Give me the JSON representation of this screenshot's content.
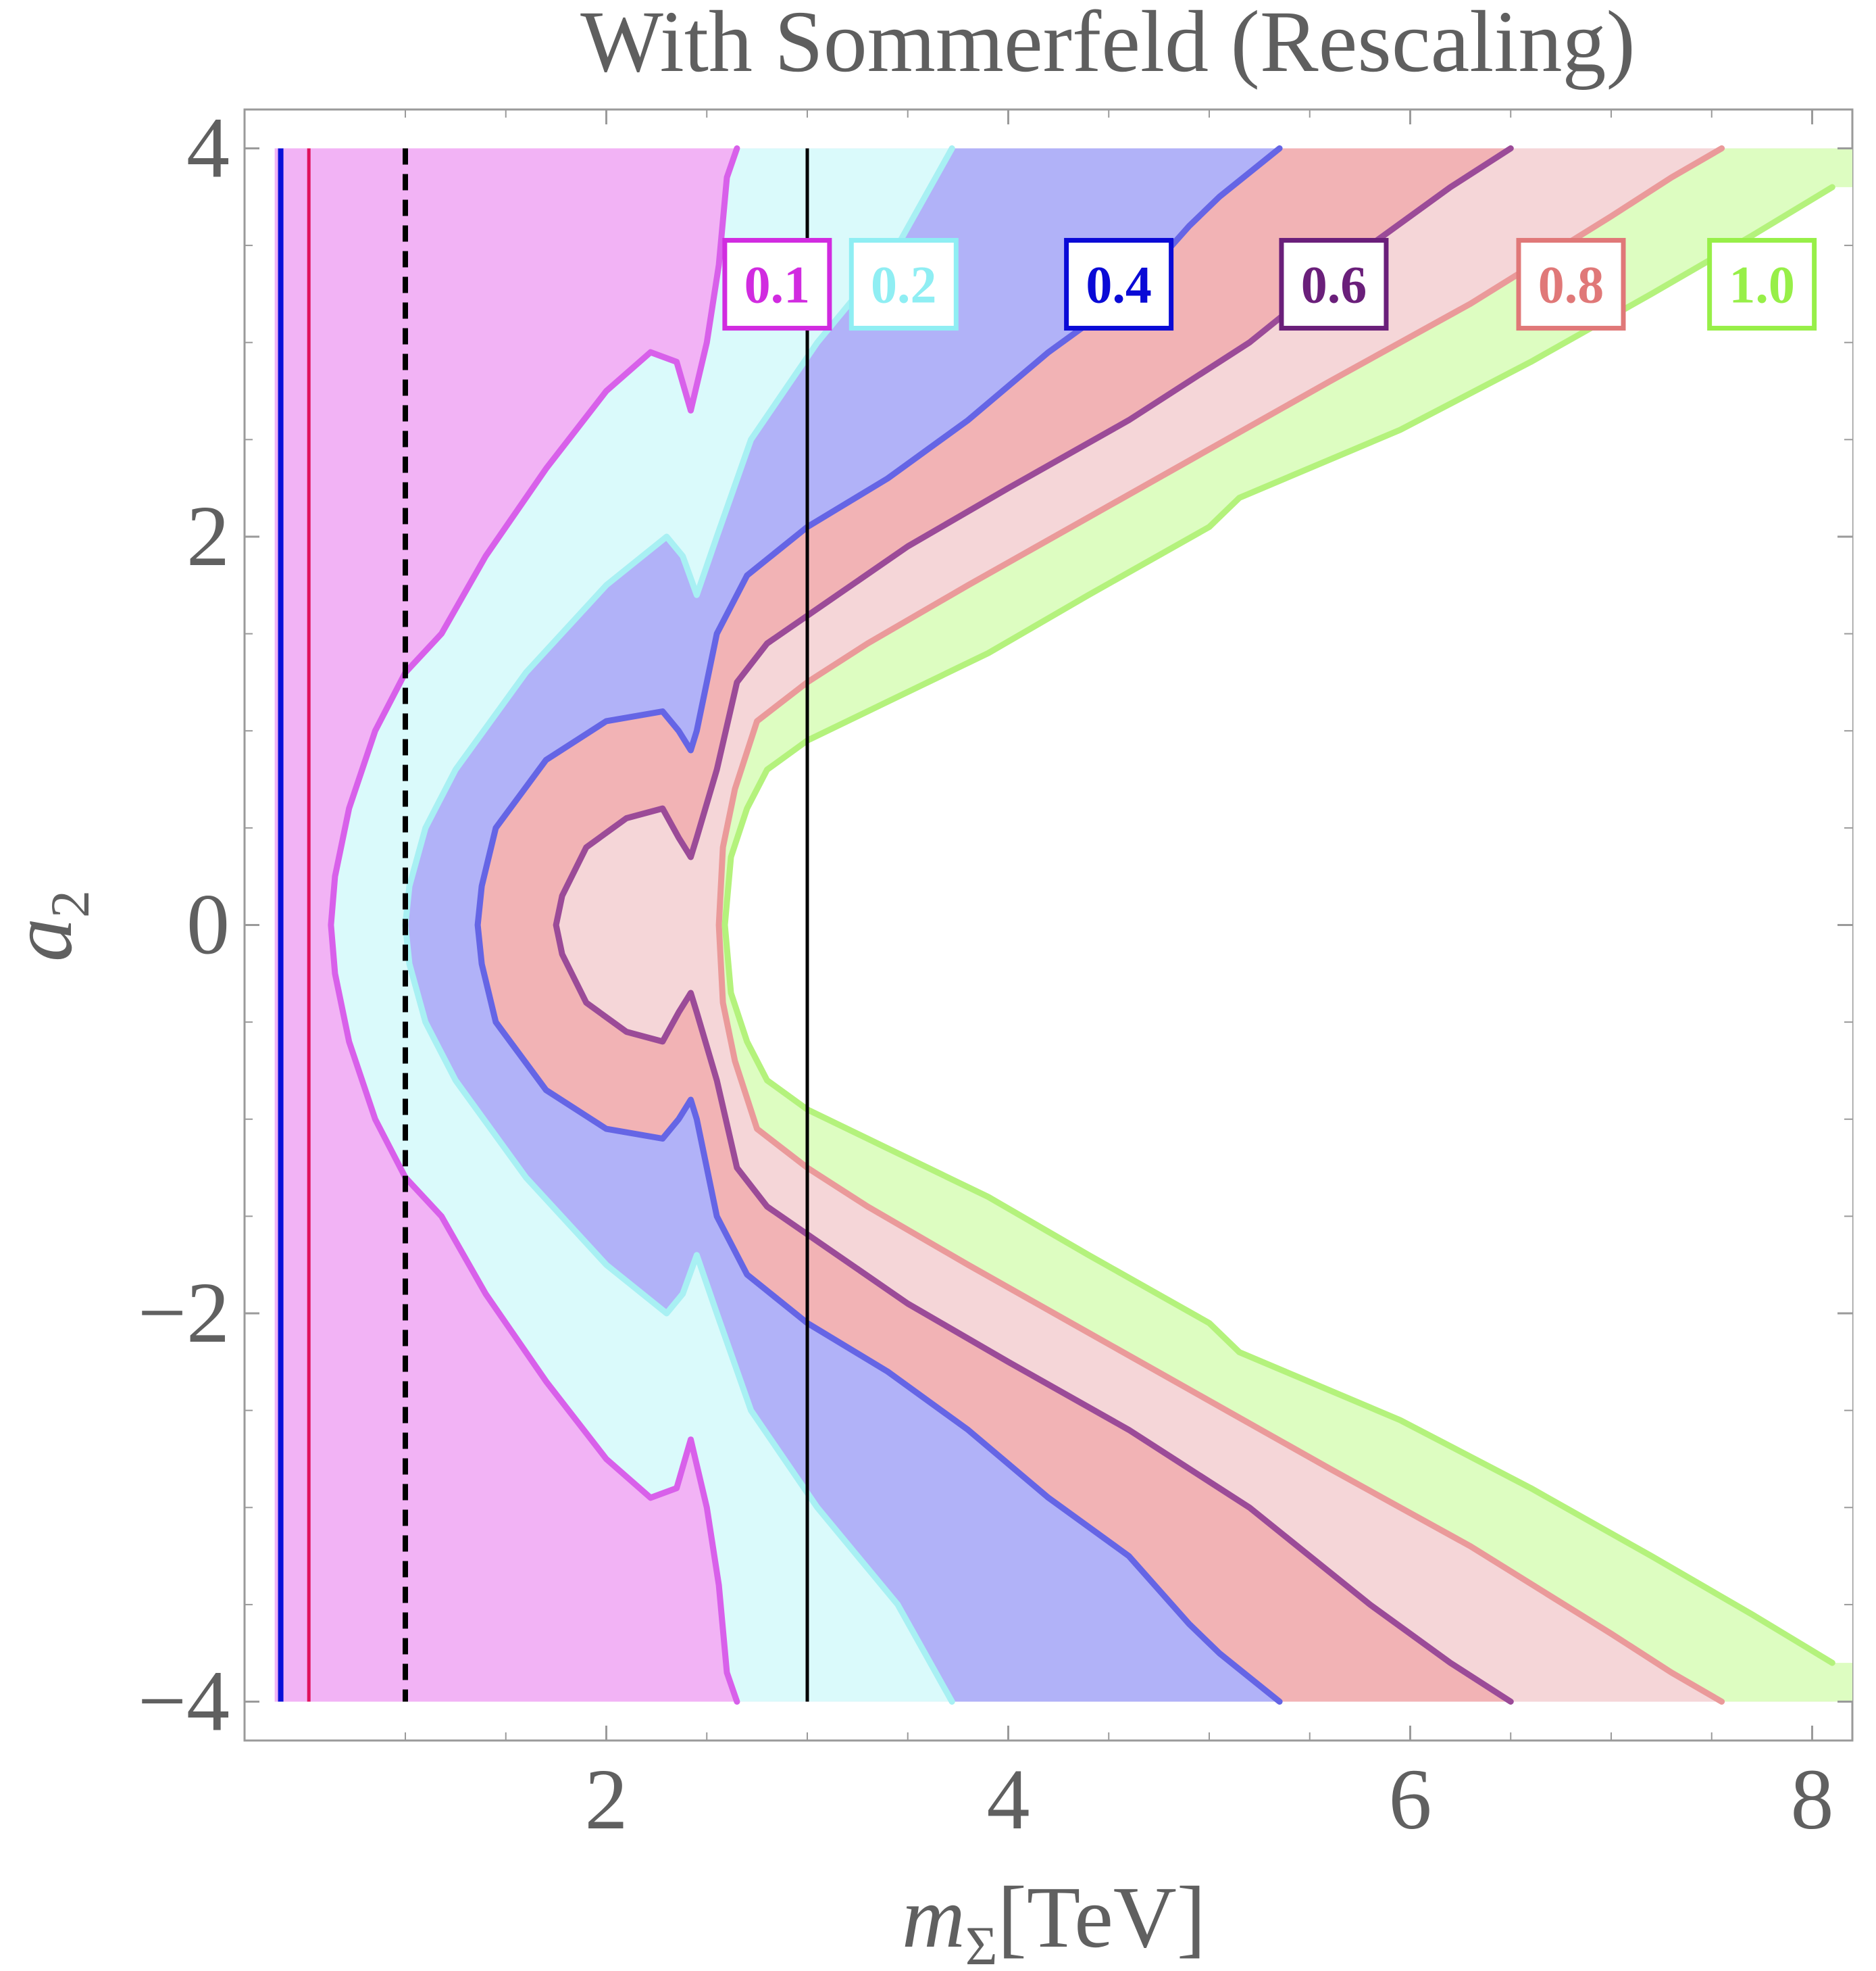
{
  "chart_data": {
    "type": "contour",
    "title": "With Sommerfeld (Rescaling)",
    "xlabel": {
      "symbol": "m",
      "subscript": "Σ",
      "unit": "[TeV]"
    },
    "ylabel": {
      "symbol": "a",
      "subscript": "2"
    },
    "xlim": [
      0.2,
      8.2
    ],
    "ylim": [
      -4.2,
      4.2
    ],
    "plot_xrange": [
      0.35,
      8.1
    ],
    "plot_yrange": [
      -4,
      4
    ],
    "x_ticks": [
      2,
      4,
      6,
      8
    ],
    "x_tick_labels": [
      "2",
      "4",
      "6",
      "8"
    ],
    "y_ticks": [
      4,
      2,
      0,
      -2,
      -4
    ],
    "y_tick_labels": [
      "4",
      "2",
      "0",
      "−2",
      "−4"
    ],
    "grid": false,
    "background_fill": "#f2b3f5",
    "contours": [
      {
        "level": "0.1",
        "line_color": "#d860ea",
        "fill_color": "#dafafb",
        "label_color": "#d12be0",
        "label_pos": [
          2.85,
          3.3
        ],
        "upper_half": [
          [
            2.65,
            4.0
          ],
          [
            2.6,
            3.85
          ],
          [
            2.56,
            3.4
          ],
          [
            2.5,
            3.0
          ],
          [
            2.42,
            2.65
          ],
          [
            2.35,
            2.9
          ],
          [
            2.22,
            2.95
          ],
          [
            2.0,
            2.75
          ],
          [
            1.7,
            2.35
          ],
          [
            1.4,
            1.9
          ],
          [
            1.18,
            1.5
          ],
          [
            1.0,
            1.3
          ],
          [
            0.85,
            1.0
          ],
          [
            0.72,
            0.6
          ],
          [
            0.65,
            0.25
          ],
          [
            0.63,
            0.0
          ]
        ]
      },
      {
        "level": "0.2",
        "line_color": "#a8f0f3",
        "fill_color": "#b1b2f8",
        "label_color": "#8feef3",
        "label_pos": [
          3.48,
          3.3
        ],
        "upper_half": [
          [
            3.72,
            4.0
          ],
          [
            3.45,
            3.5
          ],
          [
            3.05,
            3.0
          ],
          [
            2.72,
            2.5
          ],
          [
            2.55,
            2.0
          ],
          [
            2.45,
            1.7
          ],
          [
            2.38,
            1.9
          ],
          [
            2.3,
            2.0
          ],
          [
            2.0,
            1.75
          ],
          [
            1.6,
            1.3
          ],
          [
            1.25,
            0.8
          ],
          [
            1.1,
            0.5
          ],
          [
            1.02,
            0.2
          ],
          [
            1.0,
            0.0
          ]
        ]
      },
      {
        "level": "0.4",
        "line_color": "#6565e5",
        "fill_color": "#f2b3b5",
        "label_color": "#0a0ad6",
        "label_pos": [
          4.55,
          3.3
        ],
        "upper_half": [
          [
            5.35,
            4.0
          ],
          [
            5.05,
            3.75
          ],
          [
            4.9,
            3.6
          ],
          [
            4.6,
            3.25
          ],
          [
            4.2,
            2.95
          ],
          [
            3.8,
            2.6
          ],
          [
            3.4,
            2.3
          ],
          [
            3.0,
            2.05
          ],
          [
            2.7,
            1.8
          ],
          [
            2.55,
            1.5
          ],
          [
            2.45,
            1.0
          ],
          [
            2.42,
            0.9
          ],
          [
            2.36,
            1.0
          ],
          [
            2.28,
            1.1
          ],
          [
            2.0,
            1.05
          ],
          [
            1.7,
            0.85
          ],
          [
            1.45,
            0.5
          ],
          [
            1.38,
            0.2
          ],
          [
            1.36,
            0.0
          ]
        ]
      },
      {
        "level": "0.6",
        "line_color": "#9b4b98",
        "fill_color": "#f5d6d8",
        "label_color": "#6a1f7a",
        "label_pos": [
          5.62,
          3.3
        ],
        "upper_half": [
          [
            6.5,
            4.0
          ],
          [
            6.2,
            3.8
          ],
          [
            5.8,
            3.5
          ],
          [
            5.2,
            3.0
          ],
          [
            4.6,
            2.6
          ],
          [
            4.0,
            2.25
          ],
          [
            3.5,
            1.95
          ],
          [
            3.15,
            1.7
          ],
          [
            2.8,
            1.45
          ],
          [
            2.65,
            1.25
          ],
          [
            2.55,
            0.8
          ],
          [
            2.45,
            0.45
          ],
          [
            2.42,
            0.35
          ],
          [
            2.36,
            0.45
          ],
          [
            2.28,
            0.6
          ],
          [
            2.1,
            0.55
          ],
          [
            1.9,
            0.4
          ],
          [
            1.78,
            0.15
          ],
          [
            1.75,
            0.0
          ]
        ]
      },
      {
        "level": "0.8",
        "line_color": "#ea9a9a",
        "fill_color": "#ddfdc1",
        "label_color": "#e07878",
        "label_pos": [
          6.8,
          3.3
        ],
        "upper_half": [
          [
            7.55,
            4.0
          ],
          [
            7.3,
            3.85
          ],
          [
            7.0,
            3.65
          ],
          [
            6.3,
            3.2
          ],
          [
            5.6,
            2.8
          ],
          [
            5.0,
            2.45
          ],
          [
            4.4,
            2.1
          ],
          [
            3.8,
            1.75
          ],
          [
            3.3,
            1.45
          ],
          [
            3.0,
            1.25
          ],
          [
            2.75,
            1.05
          ],
          [
            2.64,
            0.7
          ],
          [
            2.58,
            0.4
          ],
          [
            2.56,
            0.0
          ]
        ]
      },
      {
        "level": "1.0",
        "line_color": "#b4f27c",
        "fill_color": "#ffffff",
        "label_color": "#97ef48",
        "label_pos": [
          7.75,
          3.3
        ],
        "upper_half": [
          [
            8.1,
            3.8
          ],
          [
            7.7,
            3.55
          ],
          [
            7.2,
            3.25
          ],
          [
            6.6,
            2.9
          ],
          [
            5.95,
            2.55
          ],
          [
            5.15,
            2.2
          ],
          [
            5.0,
            2.05
          ],
          [
            4.4,
            1.7
          ],
          [
            3.9,
            1.4
          ],
          [
            3.4,
            1.15
          ],
          [
            3.0,
            0.95
          ],
          [
            2.8,
            0.8
          ],
          [
            2.7,
            0.6
          ],
          [
            2.62,
            0.35
          ],
          [
            2.59,
            0.0
          ]
        ]
      }
    ],
    "vertical_lines": [
      {
        "x": 0.38,
        "color": "#0a10d8",
        "style": "solid",
        "width": "thick"
      },
      {
        "x": 0.52,
        "color": "#e0125c",
        "style": "solid",
        "width": "medium"
      },
      {
        "x": 1.0,
        "color": "#000000",
        "style": "dashed",
        "width": "thick"
      },
      {
        "x": 3.0,
        "color": "#000000",
        "style": "solid",
        "width": "medium"
      }
    ]
  }
}
